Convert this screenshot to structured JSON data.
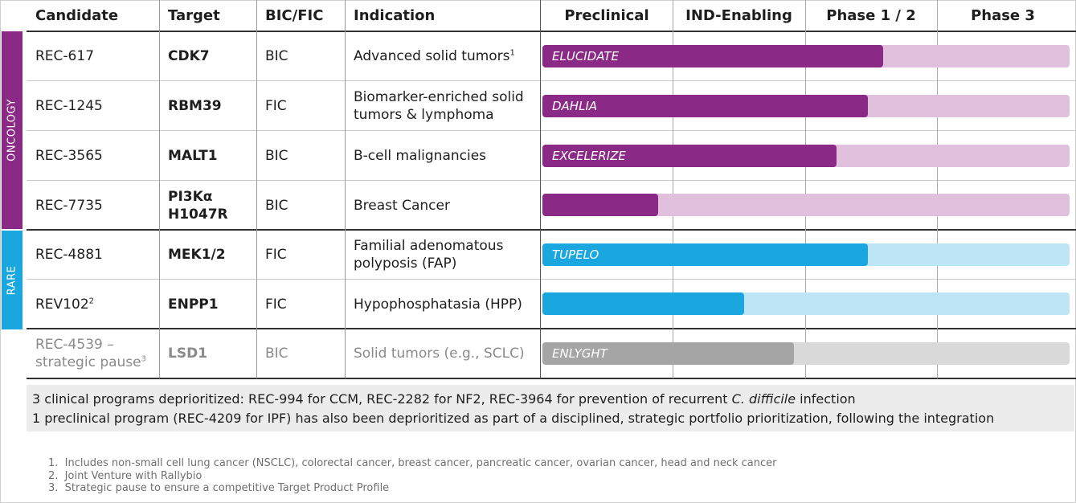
{
  "headers": {
    "candidate": "Candidate",
    "target": "Target",
    "bic_fic": "BIC/FIC",
    "indication": "Indication",
    "preclinical": "Preclinical",
    "ind_enabling": "IND-Enabling",
    "phase12": "Phase 1 / 2",
    "phase3": "Phase 3"
  },
  "groups": {
    "oncology": "ONCOLOGY",
    "rare": "RARE"
  },
  "colors": {
    "oncology": "#8b2a86",
    "oncology_light": "#e0c0dd",
    "rare": "#1aa7e0",
    "rare_light": "#bee5f5",
    "paused": "#a5a5a5",
    "paused_light": "#d9d9d9"
  },
  "rows": [
    {
      "candidate": "REC-617",
      "candidate_sup": "",
      "target": "CDK7",
      "bic_fic": "BIC",
      "indication": "Advanced solid tumors",
      "indication_sup": "1",
      "study": "ELUCIDATE",
      "progress": 0.646
    },
    {
      "candidate": "REC-1245",
      "candidate_sup": "",
      "target": "RBM39",
      "bic_fic": "FIC",
      "indication": "Biomarker-enriched solid tumors & lymphoma",
      "indication_sup": "",
      "study": "DAHLIA",
      "progress": 0.618
    },
    {
      "candidate": "REC-3565",
      "candidate_sup": "",
      "target": "MALT1",
      "bic_fic": "BIC",
      "indication": "B-cell malignancies",
      "indication_sup": "",
      "study": "EXCELERIZE",
      "progress": 0.558
    },
    {
      "candidate": "REC-7735",
      "candidate_sup": "",
      "target": "PI3Kα H1047R",
      "bic_fic": "BIC",
      "indication": "Breast Cancer",
      "indication_sup": "",
      "study": "",
      "progress": 0.22
    },
    {
      "candidate": "REC-4881",
      "candidate_sup": "",
      "target": "MEK1/2",
      "bic_fic": "FIC",
      "indication": "Familial adenomatous polyposis (FAP)",
      "indication_sup": "",
      "study": "TUPELO",
      "progress": 0.618
    },
    {
      "candidate": "REV102",
      "candidate_sup": "2",
      "target": "ENPP1",
      "bic_fic": "FIC",
      "indication": "Hypophosphatasia (HPP)",
      "indication_sup": "",
      "study": "",
      "progress": 0.383
    },
    {
      "candidate": "REC-4539 – strategic pause",
      "candidate_sup": "3",
      "target": "LSD1",
      "bic_fic": "BIC",
      "indication": "Solid tumors (e.g., SCLC)",
      "indication_sup": "",
      "study": "ENLYGHT",
      "progress": 0.477
    }
  ],
  "note": {
    "line1_prefix": "3 clinical programs deprioritized: REC-994 for CCM, REC-2282 for NF2, REC-3964 for prevention of recurrent ",
    "line1_italic": "C. difficile",
    "line1_suffix": " infection",
    "line2": "1 preclinical program (REC-4209 for IPF) has also been deprioritized as part of a disciplined, strategic portfolio prioritization, following the integration"
  },
  "footnotes": [
    {
      "num": "1.",
      "text": "Includes non-small cell lung cancer (NSCLC), colorectal cancer, breast cancer, pancreatic cancer, ovarian cancer, head and neck cancer"
    },
    {
      "num": "2.",
      "text": "Joint Venture with Rallybio"
    },
    {
      "num": "3.",
      "text": "Strategic pause to ensure a competitive Target Product Profile"
    }
  ]
}
